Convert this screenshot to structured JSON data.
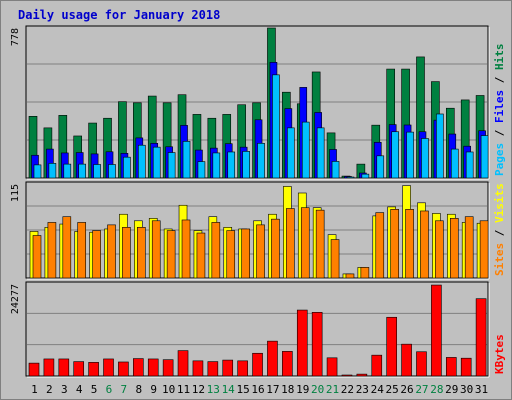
{
  "title": "Daily usage for January 2018",
  "colors": {
    "title": "#0000cc",
    "hits": "#008040",
    "files": "#0000ff",
    "pages": "#00c0ff",
    "visits": "#ffff00",
    "sites": "#ff8000",
    "kbytes": "#ff0000",
    "weekend_label": "#008040",
    "panel_bg": "#c0c0c0",
    "grid": "#808080"
  },
  "chart_data": [
    {
      "type": "bar",
      "panel": "hits-files-pages",
      "ymax_label": "778",
      "legend": [
        "Pages",
        "Files",
        "Hits"
      ],
      "categories": [
        "1",
        "2",
        "3",
        "4",
        "5",
        "6",
        "7",
        "8",
        "9",
        "10",
        "11",
        "12",
        "13",
        "14",
        "15",
        "16",
        "17",
        "18",
        "19",
        "20",
        "21",
        "22",
        "23",
        "24",
        "25",
        "26",
        "27",
        "28",
        "29",
        "30",
        "31"
      ],
      "ylim": [
        0,
        778
      ],
      "series": [
        {
          "name": "Hits",
          "values": [
            320,
            260,
            325,
            218,
            285,
            310,
            396,
            390,
            425,
            390,
            432,
            330,
            310,
            330,
            380,
            390,
            778,
            445,
            385,
            550,
            234,
            10,
            72,
            274,
            565,
            565,
            628,
            500,
            362,
            405,
            428
          ]
        },
        {
          "name": "Files",
          "values": [
            118,
            150,
            130,
            132,
            125,
            136,
            128,
            208,
            180,
            162,
            273,
            145,
            155,
            178,
            160,
            302,
            600,
            360,
            470,
            340,
            148,
            8,
            26,
            185,
            277,
            275,
            240,
            300,
            228,
            165,
            245
          ]
        },
        {
          "name": "Pages",
          "values": [
            68,
            76,
            72,
            72,
            70,
            70,
            108,
            170,
            160,
            132,
            190,
            85,
            130,
            135,
            138,
            180,
            535,
            260,
            290,
            260,
            86,
            4,
            20,
            115,
            240,
            238,
            205,
            332,
            150,
            135,
            220
          ]
        }
      ]
    },
    {
      "type": "bar",
      "panel": "visits-sites",
      "ymax_label": "115",
      "legend": [
        "Sites",
        "Visits"
      ],
      "categories": [
        "1",
        "2",
        "3",
        "4",
        "5",
        "6",
        "7",
        "8",
        "9",
        "10",
        "11",
        "12",
        "13",
        "14",
        "15",
        "16",
        "17",
        "18",
        "19",
        "20",
        "21",
        "22",
        "23",
        "24",
        "25",
        "26",
        "27",
        "28",
        "29",
        "30",
        "31"
      ],
      "ylim": [
        0,
        115
      ],
      "series": [
        {
          "name": "Visits",
          "values": [
            57,
            62,
            66,
            57,
            56,
            60,
            78,
            70,
            73,
            60,
            89,
            58,
            75,
            62,
            60,
            70,
            78,
            112,
            104,
            86,
            53,
            5,
            13,
            76,
            87,
            113,
            92,
            79,
            78,
            68,
            67
          ]
        },
        {
          "name": "Sites",
          "values": [
            52,
            68,
            75,
            68,
            58,
            65,
            62,
            62,
            70,
            58,
            71,
            55,
            68,
            58,
            60,
            65,
            72,
            85,
            86,
            83,
            47,
            5,
            13,
            80,
            84,
            84,
            82,
            70,
            73,
            75,
            70
          ]
        }
      ]
    },
    {
      "type": "bar",
      "panel": "kbytes",
      "ymax_label": "24277",
      "legend": [
        "KBytes"
      ],
      "categories": [
        "1",
        "2",
        "3",
        "4",
        "5",
        "6",
        "7",
        "8",
        "9",
        "10",
        "11",
        "12",
        "13",
        "14",
        "15",
        "16",
        "17",
        "18",
        "19",
        "20",
        "21",
        "22",
        "23",
        "24",
        "25",
        "26",
        "27",
        "28",
        "29",
        "30",
        "31"
      ],
      "ylim": [
        0,
        24277
      ],
      "series": [
        {
          "name": "KBytes",
          "values": [
            3400,
            4500,
            4500,
            3800,
            3600,
            4500,
            3700,
            4600,
            4500,
            4300,
            6700,
            4000,
            3800,
            4200,
            4000,
            6000,
            9200,
            6500,
            17400,
            16800,
            4800,
            200,
            500,
            5500,
            15500,
            8400,
            6400,
            24000,
            4900,
            4700,
            20400
          ]
        }
      ]
    }
  ],
  "weekend_days": [
    "6",
    "7",
    "13",
    "14",
    "20",
    "21",
    "27",
    "28"
  ]
}
